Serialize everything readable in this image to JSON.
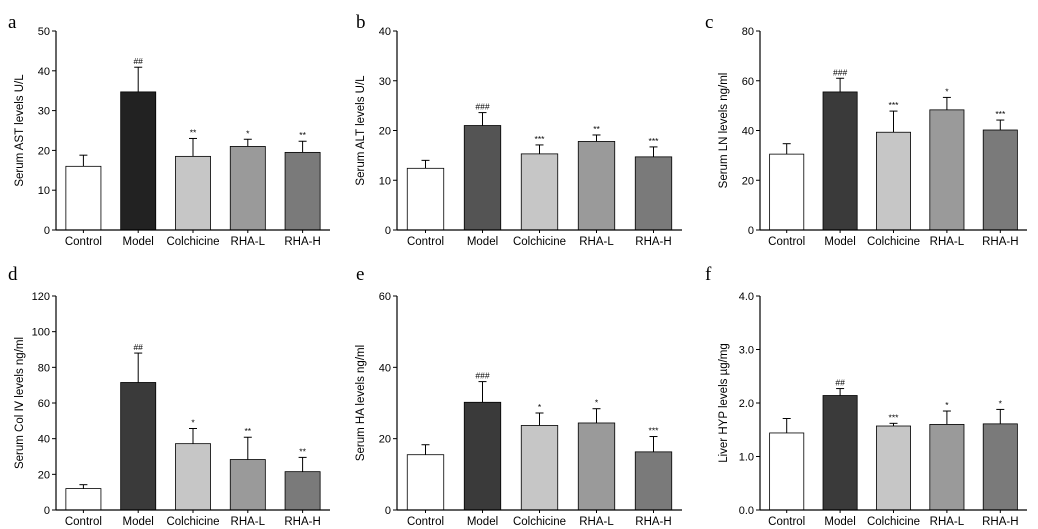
{
  "figure": {
    "categories": [
      "Control",
      "Model",
      "Colchicine",
      "RHA-L",
      "RHA-H"
    ],
    "bar_colors": [
      "#ffffff",
      "#3a3a3a",
      "#c6c6c6",
      "#9a9a9a",
      "#7a7a7a"
    ]
  },
  "chart_data": [
    {
      "panel": "a",
      "type": "bar",
      "ylabel": "Serum AST levels U/L",
      "ylim": [
        0,
        50
      ],
      "yticks": [
        0,
        10,
        20,
        30,
        40,
        50
      ],
      "categories": [
        "Control",
        "Model",
        "Colchicine",
        "RHA-L",
        "RHA-H"
      ],
      "values": [
        16,
        34.7,
        18.5,
        21,
        19.5
      ],
      "errors": [
        2.8,
        6.2,
        4.5,
        1.8,
        2.8
      ],
      "significance": [
        "",
        "##",
        "**",
        "*",
        "**"
      ],
      "colors": [
        "#ffffff",
        "#222222",
        "#c6c6c6",
        "#9a9a9a",
        "#7a7a7a"
      ]
    },
    {
      "panel": "b",
      "type": "bar",
      "ylabel": "Serum ALT levels U/L",
      "ylim": [
        0,
        40
      ],
      "yticks": [
        0,
        10,
        20,
        30,
        40
      ],
      "categories": [
        "Control",
        "Model",
        "Colchicine",
        "RHA-L",
        "RHA-H"
      ],
      "values": [
        12.4,
        21,
        15.3,
        17.8,
        14.7
      ],
      "errors": [
        1.6,
        2.6,
        1.8,
        1.3,
        2.0
      ],
      "significance": [
        "",
        "###",
        "***",
        "**",
        "***"
      ],
      "colors": [
        "#ffffff",
        "#545454",
        "#c6c6c6",
        "#9a9a9a",
        "#7a7a7a"
      ]
    },
    {
      "panel": "c",
      "type": "bar",
      "ylabel": "Serum LN levels ng/ml",
      "ylim": [
        0,
        80
      ],
      "yticks": [
        0,
        20,
        40,
        60,
        80
      ],
      "categories": [
        "Control",
        "Model",
        "Colchicine",
        "RHA-L",
        "RHA-H"
      ],
      "values": [
        30.5,
        55.5,
        39.3,
        48.3,
        40.2
      ],
      "errors": [
        4.2,
        5.5,
        8.5,
        5.0,
        4.0
      ],
      "significance": [
        "",
        "###",
        "***",
        "*",
        "***"
      ],
      "colors": [
        "#ffffff",
        "#3a3a3a",
        "#c6c6c6",
        "#9a9a9a",
        "#7a7a7a"
      ]
    },
    {
      "panel": "d",
      "type": "bar",
      "ylabel": "Serum Col Ⅳ levels ng/ml",
      "ylim": [
        0,
        120
      ],
      "yticks": [
        0,
        20,
        40,
        60,
        80,
        100,
        120
      ],
      "categories": [
        "Control",
        "Model",
        "Colchicine",
        "RHA-L",
        "RHA-H"
      ],
      "values": [
        12,
        71.5,
        37.2,
        28.3,
        21.5
      ],
      "errors": [
        2.2,
        16.5,
        8.5,
        12.5,
        8.0
      ],
      "significance": [
        "",
        "##",
        "*",
        "**",
        "**"
      ],
      "colors": [
        "#ffffff",
        "#3a3a3a",
        "#c6c6c6",
        "#9a9a9a",
        "#7a7a7a"
      ]
    },
    {
      "panel": "e",
      "type": "bar",
      "ylabel": "Serum HA levels ng/ml",
      "ylim": [
        0,
        60
      ],
      "yticks": [
        0,
        20,
        40,
        60
      ],
      "categories": [
        "Control",
        "Model",
        "Colchicine",
        "RHA-L",
        "RHA-H"
      ],
      "values": [
        15.5,
        30.2,
        23.7,
        24.4,
        16.3
      ],
      "errors": [
        2.8,
        5.8,
        3.5,
        4.0,
        4.3
      ],
      "significance": [
        "",
        "###",
        "*",
        "*",
        "***"
      ],
      "colors": [
        "#ffffff",
        "#3a3a3a",
        "#c6c6c6",
        "#9a9a9a",
        "#7a7a7a"
      ]
    },
    {
      "panel": "f",
      "type": "bar",
      "ylabel": "Liver HYP levels µg/mg",
      "ylim": [
        0,
        4.0
      ],
      "yticks": [
        "0.0",
        "1.0",
        "2.0",
        "3.0",
        "4.0"
      ],
      "categories": [
        "Control",
        "Model",
        "Colchicine",
        "RHA-L",
        "RHA-H"
      ],
      "values": [
        1.44,
        2.14,
        1.57,
        1.6,
        1.61
      ],
      "errors": [
        0.27,
        0.13,
        0.05,
        0.25,
        0.27
      ],
      "significance": [
        "",
        "##",
        "***",
        "*",
        "*"
      ],
      "colors": [
        "#ffffff",
        "#3a3a3a",
        "#c6c6c6",
        "#9a9a9a",
        "#7a7a7a"
      ]
    }
  ]
}
